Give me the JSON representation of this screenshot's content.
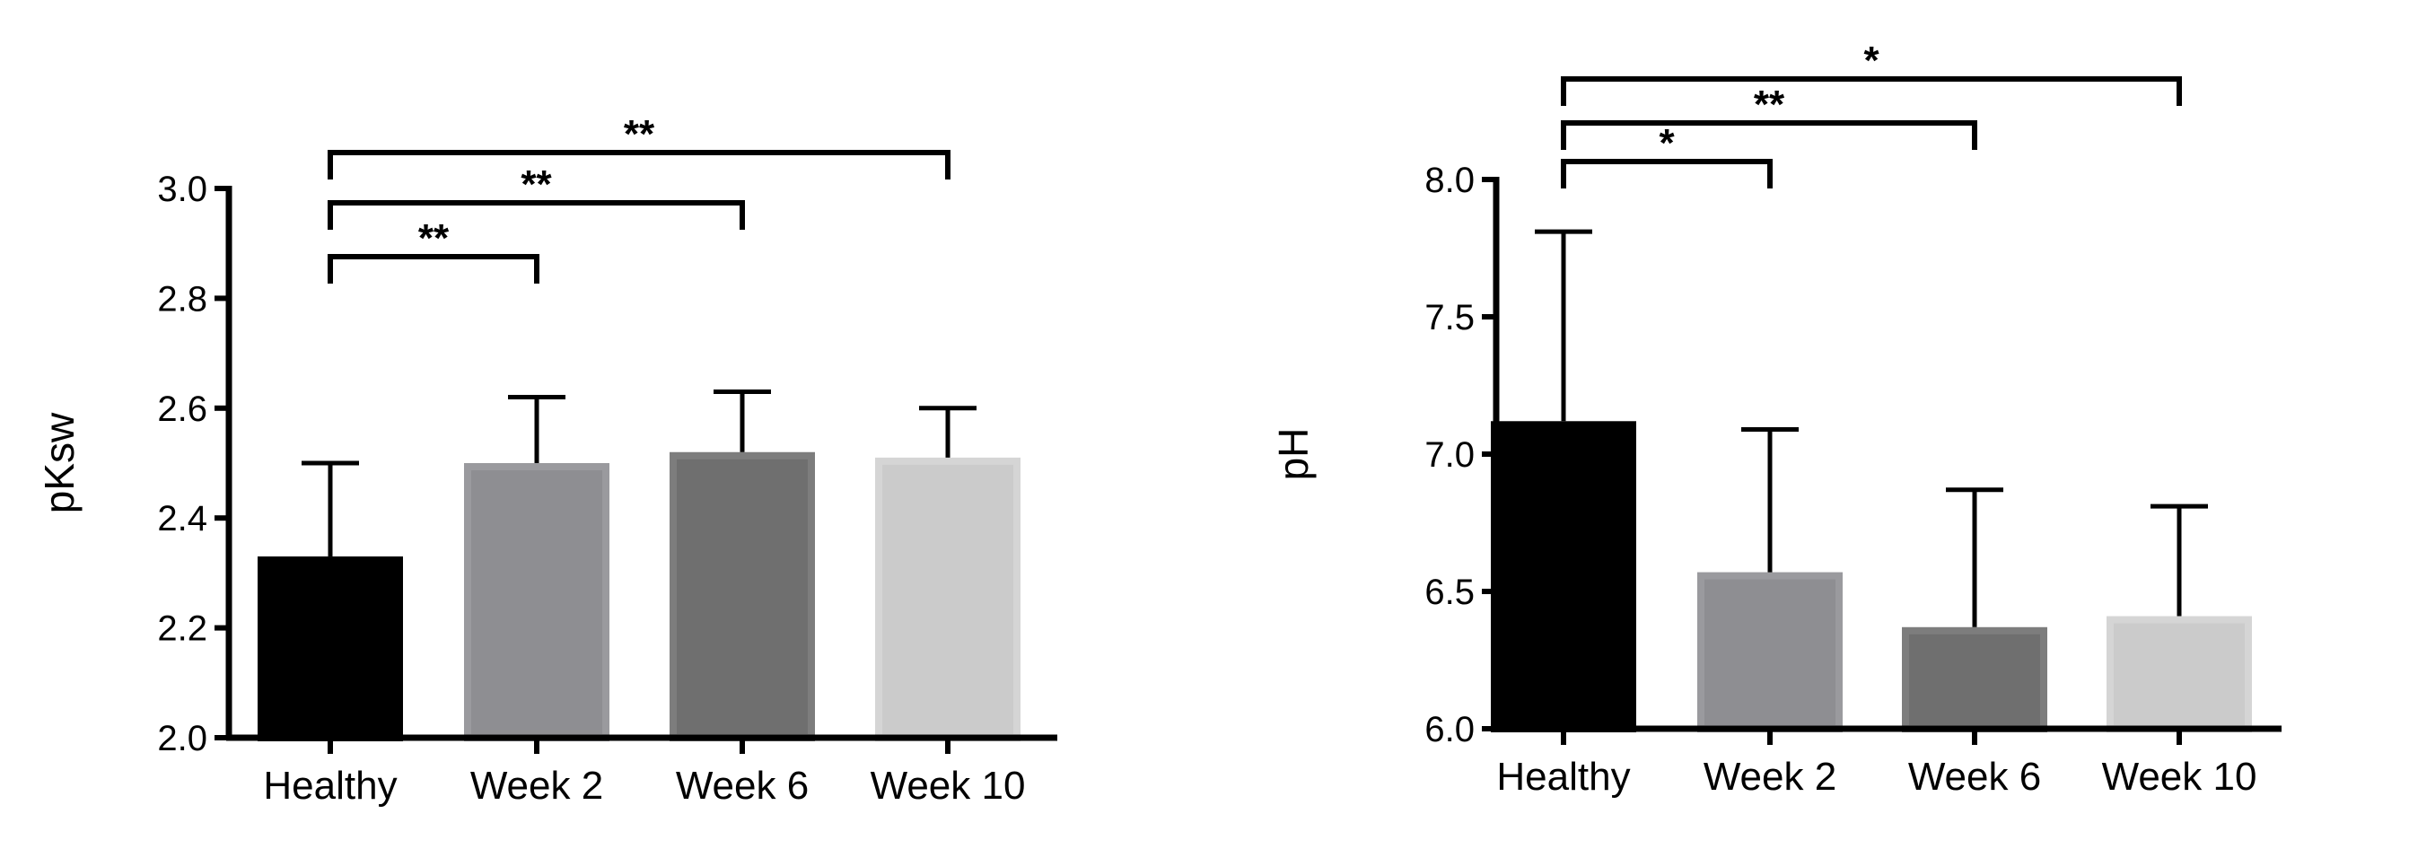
{
  "chart_data": [
    {
      "type": "bar",
      "title": "",
      "xlabel": "",
      "ylabel": "pKsw",
      "ylim": [
        2.0,
        3.0
      ],
      "yticks": [
        2.0,
        2.2,
        2.4,
        2.6,
        2.8,
        3.0
      ],
      "ytick_labels": [
        "2.0",
        "2.2",
        "2.4",
        "2.6",
        "2.8",
        "3.0"
      ],
      "categories": [
        "Healthy",
        "Week 2",
        "Week 6",
        "Week 10"
      ],
      "values": [
        2.33,
        2.5,
        2.52,
        2.51
      ],
      "errors": [
        0.17,
        0.12,
        0.11,
        0.09
      ],
      "colors": [
        "#000000",
        "#8e8e92",
        "#6f6f6f",
        "#cbcbcb"
      ],
      "edge_colors": [
        "#000000",
        "#9a9a9e",
        "#7d7d7d",
        "#d5d5d5"
      ],
      "significance": [
        {
          "from": 0,
          "to": 1,
          "label": "**"
        },
        {
          "from": 0,
          "to": 2,
          "label": "**"
        },
        {
          "from": 0,
          "to": 3,
          "label": "**"
        }
      ]
    },
    {
      "type": "bar",
      "title": "",
      "xlabel": "",
      "ylabel": "pH",
      "ylim": [
        6.0,
        8.0
      ],
      "yticks": [
        6.0,
        6.5,
        7.0,
        7.5,
        8.0
      ],
      "ytick_labels": [
        "6.0",
        "6.5",
        "7.0",
        "7.5",
        "8.0"
      ],
      "categories": [
        "Healthy",
        "Week 2",
        "Week 6",
        "Week 10"
      ],
      "values": [
        7.12,
        6.57,
        6.37,
        6.41
      ],
      "errors": [
        0.69,
        0.52,
        0.5,
        0.4
      ],
      "colors": [
        "#000000",
        "#8e8e92",
        "#6f6f6f",
        "#cbcbcb"
      ],
      "edge_colors": [
        "#000000",
        "#9a9a9e",
        "#7d7d7d",
        "#d5d5d5"
      ],
      "significance": [
        {
          "from": 0,
          "to": 1,
          "label": "*"
        },
        {
          "from": 0,
          "to": 2,
          "label": "**"
        },
        {
          "from": 0,
          "to": 3,
          "label": "*"
        }
      ]
    }
  ]
}
